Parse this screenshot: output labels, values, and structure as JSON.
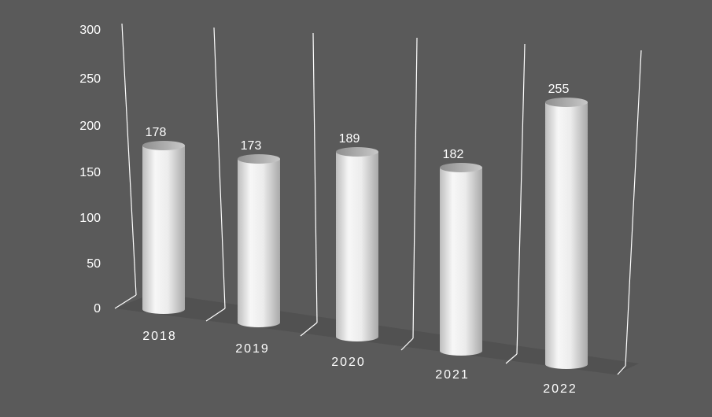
{
  "chart_data": {
    "type": "bar",
    "style": "3d-cylinder",
    "categories": [
      "2018",
      "2019",
      "2020",
      "2021",
      "2022"
    ],
    "values": [
      178,
      173,
      189,
      182,
      255
    ],
    "y_ticks": [
      "0",
      "50",
      "100",
      "150",
      "200",
      "250",
      "300"
    ],
    "ylim": [
      0,
      300
    ],
    "grid": false,
    "legend": "none",
    "title": "",
    "xlabel": "",
    "ylabel": "",
    "colors": {
      "background": "#5a5a5a",
      "bar": "#e6e6e6",
      "floor": "#4d4d4d",
      "walls": "#ffffff",
      "text": "#ffffff"
    }
  }
}
